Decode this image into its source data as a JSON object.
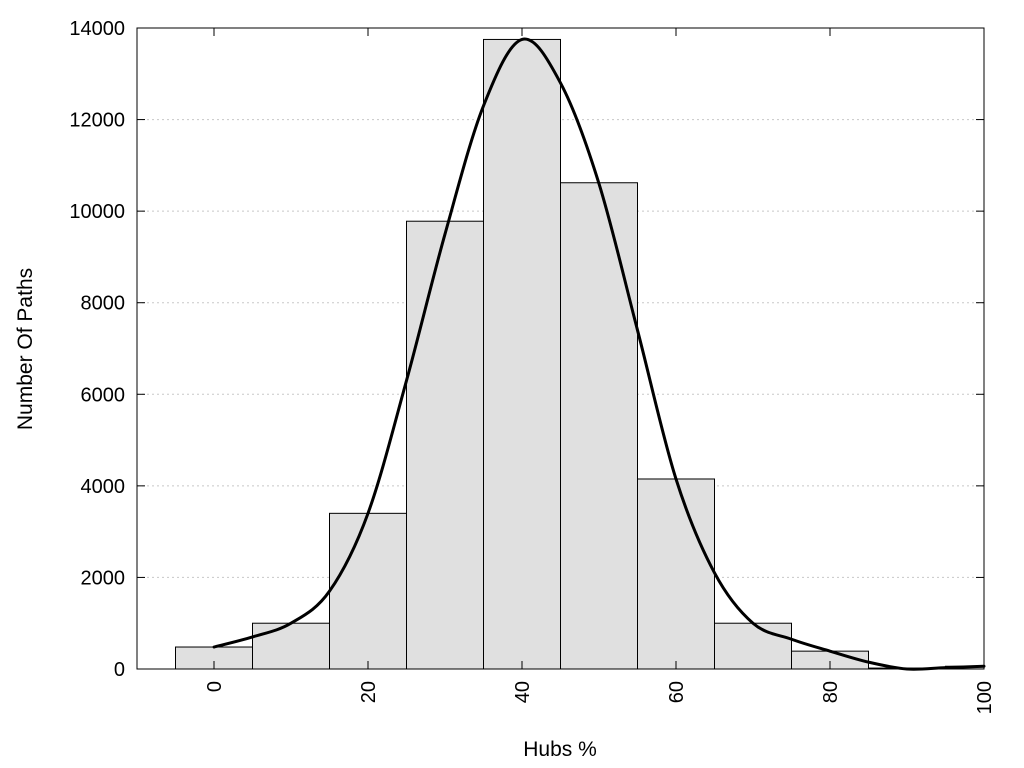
{
  "chart_data": {
    "type": "bar",
    "xlabel": "Hubs %",
    "ylabel": "Number Of Paths",
    "xlim": [
      -10,
      100
    ],
    "ylim": [
      0,
      14000
    ],
    "x_ticks": [
      0,
      20,
      40,
      60,
      80,
      100
    ],
    "y_ticks": [
      0,
      2000,
      4000,
      6000,
      8000,
      10000,
      12000,
      14000
    ],
    "grid": "horizontal dotted",
    "bin_width": 10,
    "bars": [
      {
        "x": 0,
        "value": 480
      },
      {
        "x": 10,
        "value": 1000
      },
      {
        "x": 20,
        "value": 3400
      },
      {
        "x": 30,
        "value": 9780
      },
      {
        "x": 40,
        "value": 13750
      },
      {
        "x": 50,
        "value": 10620
      },
      {
        "x": 60,
        "value": 4150
      },
      {
        "x": 70,
        "value": 1000
      },
      {
        "x": 80,
        "value": 390
      },
      {
        "x": 90,
        "value": 20
      },
      {
        "x": 100,
        "value": 60
      }
    ],
    "smooth_curve": [
      {
        "x": 0,
        "y": 480
      },
      {
        "x": 5,
        "y": 700
      },
      {
        "x": 10,
        "y": 1000
      },
      {
        "x": 15,
        "y": 1700
      },
      {
        "x": 20,
        "y": 3400
      },
      {
        "x": 25,
        "y": 6300
      },
      {
        "x": 30,
        "y": 9500
      },
      {
        "x": 35,
        "y": 12300
      },
      {
        "x": 40,
        "y": 13750
      },
      {
        "x": 45,
        "y": 12800
      },
      {
        "x": 50,
        "y": 10600
      },
      {
        "x": 55,
        "y": 7400
      },
      {
        "x": 60,
        "y": 4150
      },
      {
        "x": 65,
        "y": 2100
      },
      {
        "x": 70,
        "y": 1000
      },
      {
        "x": 75,
        "y": 650
      },
      {
        "x": 80,
        "y": 390
      },
      {
        "x": 85,
        "y": 150
      },
      {
        "x": 90,
        "y": 0
      },
      {
        "x": 95,
        "y": 30
      },
      {
        "x": 100,
        "y": 60
      }
    ]
  }
}
